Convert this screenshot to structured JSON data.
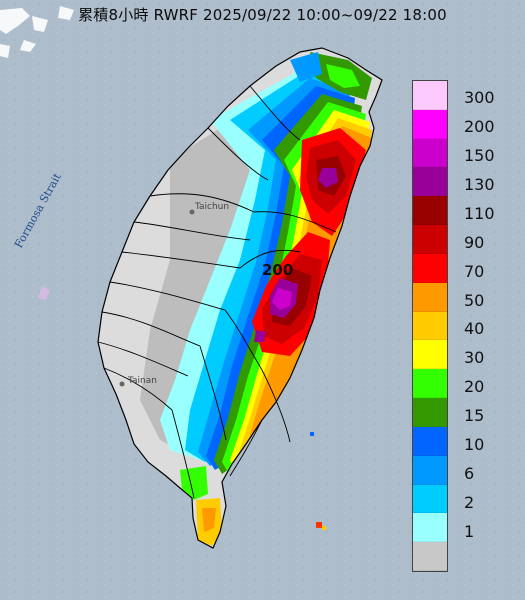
{
  "title": "累積8小時 RWRF 2025/09/22 10:00~09/22 18:00",
  "map_labels": {
    "strait": "Formosa Strait",
    "city_north": "Taichun",
    "city_south": "Tainan",
    "peak_value": "200"
  },
  "legend": {
    "title": "",
    "items": [
      {
        "label": "300",
        "color": "#fbc9fb"
      },
      {
        "label": "200",
        "color": "#ff00ff"
      },
      {
        "label": "150",
        "color": "#cc00cc"
      },
      {
        "label": "130",
        "color": "#990099"
      },
      {
        "label": "110",
        "color": "#990000"
      },
      {
        "label": "90",
        "color": "#cc0000"
      },
      {
        "label": "70",
        "color": "#ff0000"
      },
      {
        "label": "50",
        "color": "#ff9900"
      },
      {
        "label": "40",
        "color": "#ffcc00"
      },
      {
        "label": "30",
        "color": "#ffff00"
      },
      {
        "label": "20",
        "color": "#33ff00"
      },
      {
        "label": "15",
        "color": "#339900"
      },
      {
        "label": "10",
        "color": "#0066ff"
      },
      {
        "label": "6",
        "color": "#0099ff"
      },
      {
        "label": "2",
        "color": "#00ccff"
      },
      {
        "label": "1",
        "color": "#99ffff"
      },
      {
        "label": "",
        "color": "#c8c8c8"
      }
    ]
  },
  "colors": {
    "sea": "#aebdcb",
    "land_dry": "#dcdcdc",
    "land_trace": "#bcbcbc"
  }
}
